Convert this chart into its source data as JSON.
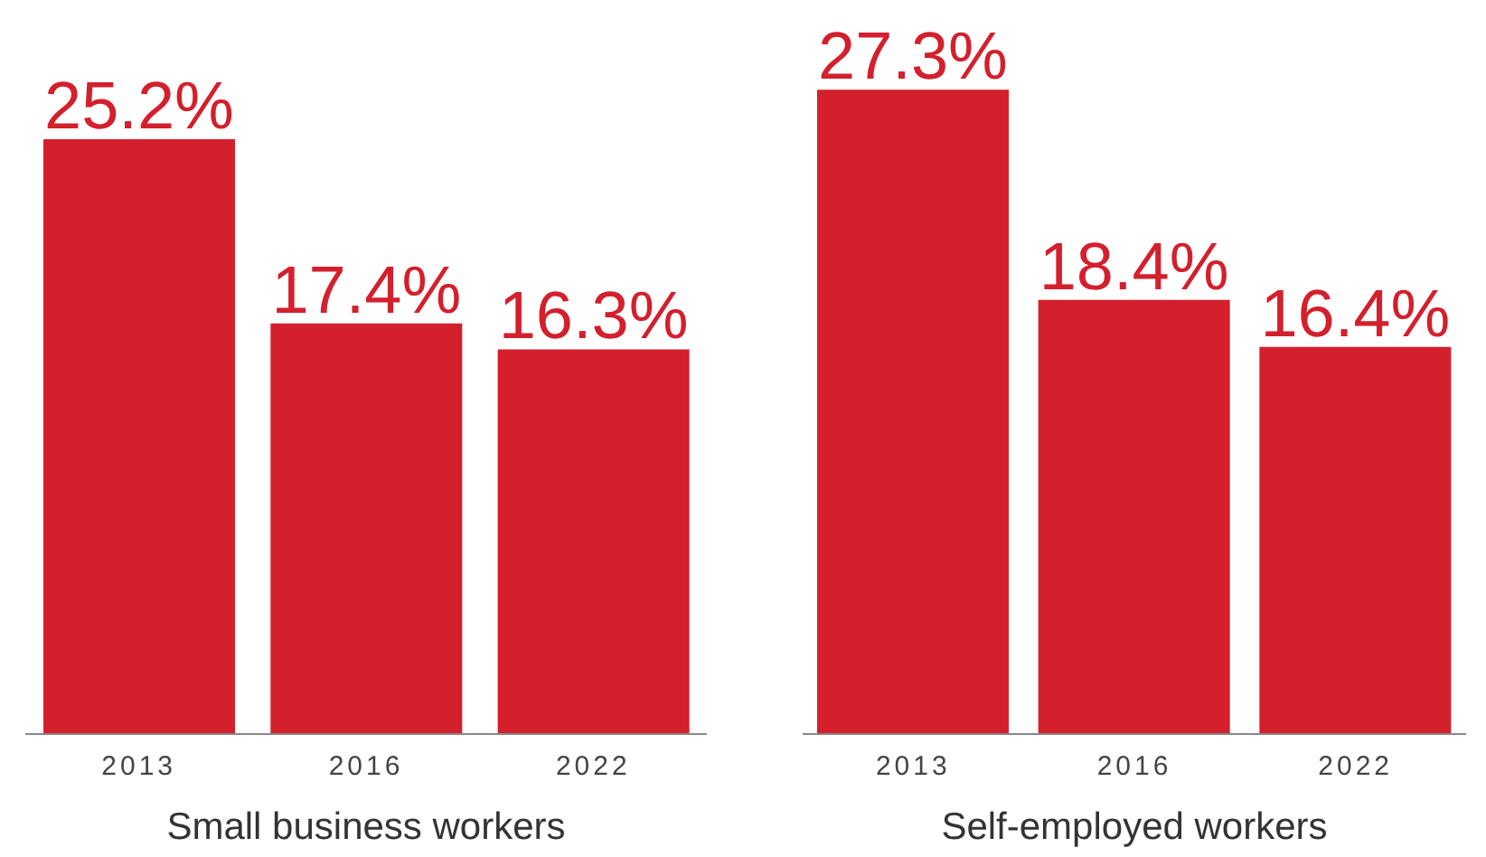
{
  "chart_data": [
    {
      "type": "bar",
      "xlabel": "Small business workers",
      "categories": [
        "2013",
        "2016",
        "2022"
      ],
      "values": [
        25.2,
        17.4,
        16.3
      ],
      "value_labels": [
        "25.2%",
        "17.4%",
        "16.3%"
      ],
      "color": "#d41f2d",
      "grid": false,
      "legend": false,
      "tick_labels": "x"
    },
    {
      "type": "bar",
      "xlabel": "Self-employed workers",
      "categories": [
        "2013",
        "2016",
        "2022"
      ],
      "values": [
        27.3,
        18.4,
        16.4
      ],
      "value_labels": [
        "27.3%",
        "18.4%",
        "16.4%"
      ],
      "color": "#d41f2d",
      "grid": false,
      "legend": false,
      "tick_labels": "x"
    }
  ]
}
